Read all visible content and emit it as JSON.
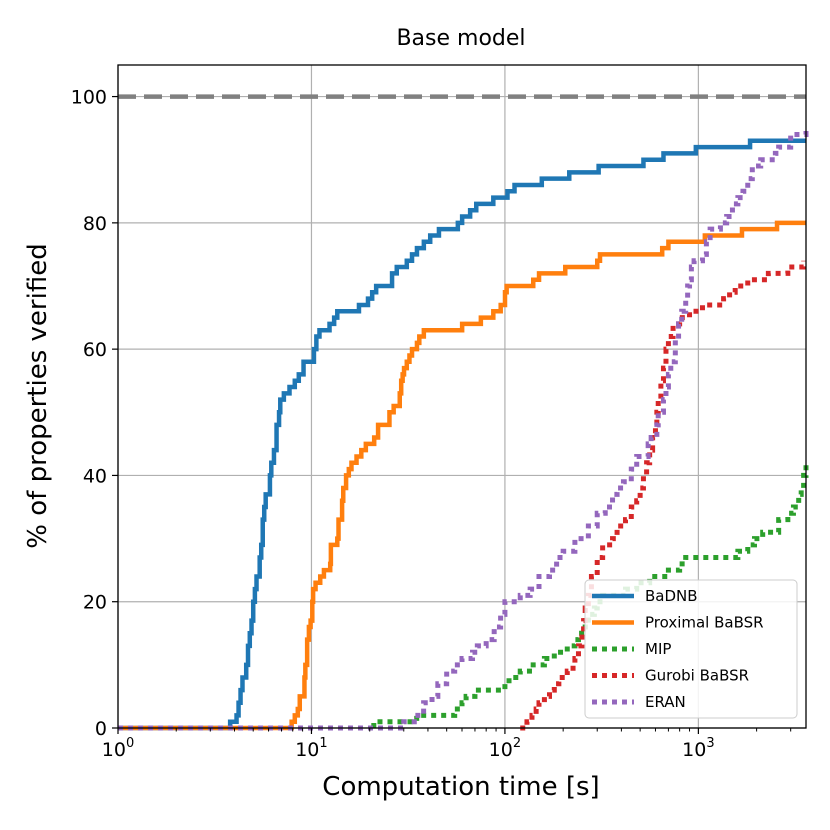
{
  "chart_data": {
    "type": "line",
    "title": "Base model",
    "xlabel": "Computation time [s]",
    "ylabel": "% of properties verified",
    "xscale": "log",
    "xlim": [
      1,
      3600
    ],
    "ylim": [
      0,
      105
    ],
    "grid": true,
    "legend_position": "lower-right",
    "x_ticks": [
      {
        "value": 1,
        "base": "10",
        "exp": "0"
      },
      {
        "value": 10,
        "base": "10",
        "exp": "1"
      },
      {
        "value": 100,
        "base": "10",
        "exp": "2"
      },
      {
        "value": 1000,
        "base": "10",
        "exp": "3"
      }
    ],
    "y_ticks": [
      {
        "value": 0,
        "label": "0"
      },
      {
        "value": 20,
        "label": "20"
      },
      {
        "value": 40,
        "label": "40"
      },
      {
        "value": 60,
        "label": "60"
      },
      {
        "value": 80,
        "label": "80"
      },
      {
        "value": 100,
        "label": "100"
      }
    ],
    "reference_line": {
      "y": 100,
      "color": "#808080",
      "style": "dashed"
    },
    "series": [
      {
        "name": "BaDNB",
        "color": "#1f77b4",
        "style": "solid",
        "points": [
          [
            1,
            0
          ],
          [
            3.8,
            0
          ],
          [
            3.8,
            1
          ],
          [
            4.1,
            1
          ],
          [
            4.1,
            2
          ],
          [
            4.2,
            4
          ],
          [
            4.3,
            6
          ],
          [
            4.4,
            8
          ],
          [
            4.6,
            8
          ],
          [
            4.6,
            10
          ],
          [
            4.7,
            13
          ],
          [
            4.8,
            15
          ],
          [
            4.9,
            17
          ],
          [
            5.0,
            20
          ],
          [
            5.1,
            22
          ],
          [
            5.2,
            24
          ],
          [
            5.4,
            24
          ],
          [
            5.4,
            27
          ],
          [
            5.5,
            29
          ],
          [
            5.6,
            33
          ],
          [
            5.7,
            35
          ],
          [
            5.8,
            37
          ],
          [
            6.1,
            37
          ],
          [
            6.1,
            40
          ],
          [
            6.2,
            42
          ],
          [
            6.4,
            44
          ],
          [
            6.6,
            45
          ],
          [
            6.6,
            48
          ],
          [
            6.8,
            50
          ],
          [
            6.9,
            52
          ],
          [
            7.2,
            53
          ],
          [
            7.6,
            53
          ],
          [
            7.7,
            54
          ],
          [
            8.2,
            55
          ],
          [
            8.6,
            56
          ],
          [
            9.1,
            57
          ],
          [
            9.1,
            58
          ],
          [
            10.1,
            58
          ],
          [
            10.3,
            60
          ],
          [
            10.6,
            62
          ],
          [
            11.0,
            63
          ],
          [
            12.1,
            63
          ],
          [
            12.4,
            64
          ],
          [
            13.1,
            65
          ],
          [
            13.6,
            66
          ],
          [
            17.1,
            66
          ],
          [
            17.6,
            67
          ],
          [
            19.1,
            67
          ],
          [
            19.6,
            68
          ],
          [
            20.6,
            69
          ],
          [
            21.6,
            70
          ],
          [
            25.1,
            70
          ],
          [
            26.1,
            72
          ],
          [
            27.6,
            73
          ],
          [
            30.1,
            73
          ],
          [
            31.1,
            74
          ],
          [
            33.1,
            75
          ],
          [
            35.1,
            76
          ],
          [
            37.1,
            76
          ],
          [
            38.1,
            77
          ],
          [
            41.1,
            78
          ],
          [
            45.1,
            78
          ],
          [
            45.6,
            79
          ],
          [
            55.1,
            79
          ],
          [
            57.1,
            80
          ],
          [
            60.1,
            81
          ],
          [
            65.1,
            81
          ],
          [
            66.1,
            82
          ],
          [
            70.1,
            82
          ],
          [
            71.1,
            83
          ],
          [
            85.1,
            83
          ],
          [
            87.1,
            84
          ],
          [
            100.5,
            84
          ],
          [
            103.1,
            85
          ],
          [
            110.1,
            85
          ],
          [
            112.1,
            86
          ],
          [
            150.1,
            86
          ],
          [
            155.1,
            87
          ],
          [
            210.1,
            87
          ],
          [
            215.1,
            88
          ],
          [
            300.1,
            88
          ],
          [
            305.1,
            89
          ],
          [
            500.1,
            89
          ],
          [
            520.1,
            90
          ],
          [
            650.1,
            90
          ],
          [
            660.1,
            91
          ],
          [
            950.1,
            91
          ],
          [
            970.1,
            92
          ],
          [
            1800,
            92
          ],
          [
            1850,
            93
          ],
          [
            3600,
            93
          ]
        ]
      },
      {
        "name": "Proximal BaBSR",
        "color": "#ff7f0e",
        "style": "solid",
        "points": [
          [
            1,
            0
          ],
          [
            7.8,
            0
          ],
          [
            7.9,
            1
          ],
          [
            8.2,
            2
          ],
          [
            8.5,
            3
          ],
          [
            8.7,
            5
          ],
          [
            9.2,
            8
          ],
          [
            9.3,
            10
          ],
          [
            9.5,
            14
          ],
          [
            9.7,
            16
          ],
          [
            9.9,
            17
          ],
          [
            10.1,
            20
          ],
          [
            10.2,
            22
          ],
          [
            10.5,
            23
          ],
          [
            11.1,
            24
          ],
          [
            11.6,
            25
          ],
          [
            12.5,
            26
          ],
          [
            12.6,
            29
          ],
          [
            13.6,
            30
          ],
          [
            13.8,
            33
          ],
          [
            14.4,
            36
          ],
          [
            14.6,
            38
          ],
          [
            15.1,
            40
          ],
          [
            15.6,
            41
          ],
          [
            16.1,
            42
          ],
          [
            17.1,
            43
          ],
          [
            18.1,
            44
          ],
          [
            19.1,
            45
          ],
          [
            21.1,
            46
          ],
          [
            22.1,
            48
          ],
          [
            25.1,
            48
          ],
          [
            25.3,
            50
          ],
          [
            26.6,
            51
          ],
          [
            28.1,
            51
          ],
          [
            28.6,
            53
          ],
          [
            29.1,
            55
          ],
          [
            29.6,
            56
          ],
          [
            30.1,
            57
          ],
          [
            31.1,
            58
          ],
          [
            32.1,
            59
          ],
          [
            33.1,
            60
          ],
          [
            35.1,
            61
          ],
          [
            36.1,
            62
          ],
          [
            38.1,
            63
          ],
          [
            55.1,
            63
          ],
          [
            60.1,
            64
          ],
          [
            70.1,
            64
          ],
          [
            75.1,
            65
          ],
          [
            85.1,
            65
          ],
          [
            87.1,
            66
          ],
          [
            95.1,
            67
          ],
          [
            100.1,
            69
          ],
          [
            102.1,
            70
          ],
          [
            130.1,
            70
          ],
          [
            140.1,
            71
          ],
          [
            150.1,
            72
          ],
          [
            200.1,
            72
          ],
          [
            205.1,
            73
          ],
          [
            280.1,
            73
          ],
          [
            300.1,
            74
          ],
          [
            310.1,
            75
          ],
          [
            600.1,
            75
          ],
          [
            650.1,
            76
          ],
          [
            700.1,
            77
          ],
          [
            1050,
            77
          ],
          [
            1080,
            78
          ],
          [
            1650,
            78
          ],
          [
            1680,
            79
          ],
          [
            2500,
            79
          ],
          [
            2550,
            80
          ],
          [
            3600,
            80
          ]
        ]
      },
      {
        "name": "MIP",
        "color": "#2ca02c",
        "style": "dotted",
        "points": [
          [
            21,
            0
          ],
          [
            21,
            1
          ],
          [
            30,
            1
          ],
          [
            33,
            1
          ],
          [
            35,
            2
          ],
          [
            55,
            3
          ],
          [
            60,
            4
          ],
          [
            63,
            5
          ],
          [
            70,
            6
          ],
          [
            90,
            6
          ],
          [
            100,
            7
          ],
          [
            105,
            8
          ],
          [
            120,
            9
          ],
          [
            140,
            10
          ],
          [
            160,
            11
          ],
          [
            180,
            12
          ],
          [
            210,
            13
          ],
          [
            230,
            14
          ],
          [
            240,
            15
          ],
          [
            260,
            16
          ],
          [
            270,
            18
          ],
          [
            290,
            19
          ],
          [
            300,
            20
          ],
          [
            320,
            21
          ],
          [
            400,
            21
          ],
          [
            420,
            22
          ],
          [
            480,
            23
          ],
          [
            560,
            24
          ],
          [
            700,
            25
          ],
          [
            800,
            26
          ],
          [
            860,
            27
          ],
          [
            1450,
            27
          ],
          [
            1600,
            28
          ],
          [
            1800,
            29
          ],
          [
            1950,
            30
          ],
          [
            2150,
            31
          ],
          [
            2600,
            33
          ],
          [
            2900,
            34
          ],
          [
            3100,
            35
          ],
          [
            3300,
            37
          ],
          [
            3400,
            38
          ],
          [
            3500,
            40
          ],
          [
            3600,
            42
          ]
        ]
      },
      {
        "name": "Gurobi BaBSR",
        "color": "#d62728",
        "style": "dotted",
        "points": [
          [
            120,
            0
          ],
          [
            120,
            0
          ],
          [
            130,
            1
          ],
          [
            138,
            2
          ],
          [
            145,
            3
          ],
          [
            150,
            4
          ],
          [
            160,
            5
          ],
          [
            170,
            6
          ],
          [
            180,
            7
          ],
          [
            190,
            8
          ],
          [
            210,
            9
          ],
          [
            225,
            10
          ],
          [
            230,
            11
          ],
          [
            240,
            13
          ],
          [
            250,
            15
          ],
          [
            255,
            17
          ],
          [
            260,
            19
          ],
          [
            270,
            21
          ],
          [
            280,
            24
          ],
          [
            300,
            27
          ],
          [
            320,
            29
          ],
          [
            360,
            30
          ],
          [
            380,
            32
          ],
          [
            420,
            33
          ],
          [
            450,
            35
          ],
          [
            480,
            36
          ],
          [
            500,
            38
          ],
          [
            520,
            40
          ],
          [
            540,
            42
          ],
          [
            560,
            44
          ],
          [
            580,
            46
          ],
          [
            600,
            48
          ],
          [
            610,
            50
          ],
          [
            620,
            52
          ],
          [
            640,
            55
          ],
          [
            660,
            57
          ],
          [
            680,
            60
          ],
          [
            700,
            62
          ],
          [
            740,
            64
          ],
          [
            800,
            65
          ],
          [
            900,
            66
          ],
          [
            1050,
            67
          ],
          [
            1350,
            68
          ],
          [
            1450,
            69
          ],
          [
            1550,
            70
          ],
          [
            1800,
            71
          ],
          [
            2300,
            72
          ],
          [
            2900,
            73
          ],
          [
            3500,
            74
          ]
        ]
      },
      {
        "name": "ERAN",
        "color": "#9467bd",
        "style": "dotted",
        "points": [
          [
            1,
            0
          ],
          [
            28,
            0
          ],
          [
            30,
            1
          ],
          [
            34,
            2
          ],
          [
            38,
            4
          ],
          [
            42,
            5
          ],
          [
            45,
            7
          ],
          [
            50,
            9
          ],
          [
            55,
            10
          ],
          [
            60,
            11
          ],
          [
            68,
            12
          ],
          [
            72,
            13
          ],
          [
            80,
            14
          ],
          [
            88,
            16
          ],
          [
            95,
            18
          ],
          [
            100,
            20
          ],
          [
            120,
            21
          ],
          [
            135,
            22
          ],
          [
            150,
            24
          ],
          [
            170,
            25
          ],
          [
            185,
            27
          ],
          [
            200,
            28
          ],
          [
            230,
            30
          ],
          [
            270,
            32
          ],
          [
            300,
            34
          ],
          [
            330,
            35
          ],
          [
            360,
            37
          ],
          [
            380,
            38
          ],
          [
            410,
            39
          ],
          [
            450,
            41
          ],
          [
            480,
            43
          ],
          [
            550,
            45
          ],
          [
            570,
            46
          ],
          [
            610,
            48
          ],
          [
            620,
            50
          ],
          [
            660,
            52
          ],
          [
            680,
            54
          ],
          [
            700,
            56
          ],
          [
            720,
            58
          ],
          [
            760,
            61
          ],
          [
            790,
            64
          ],
          [
            820,
            66
          ],
          [
            860,
            68
          ],
          [
            880,
            70
          ],
          [
            900,
            71
          ],
          [
            920,
            73
          ],
          [
            950,
            74
          ],
          [
            1050,
            75
          ],
          [
            1100,
            77
          ],
          [
            1150,
            79
          ],
          [
            1300,
            80
          ],
          [
            1400,
            81
          ],
          [
            1500,
            83
          ],
          [
            1600,
            84
          ],
          [
            1700,
            85
          ],
          [
            1800,
            87
          ],
          [
            1900,
            89
          ],
          [
            2100,
            90
          ],
          [
            2500,
            91
          ],
          [
            2600,
            92
          ],
          [
            3000,
            94
          ],
          [
            3600,
            95
          ]
        ]
      }
    ]
  }
}
